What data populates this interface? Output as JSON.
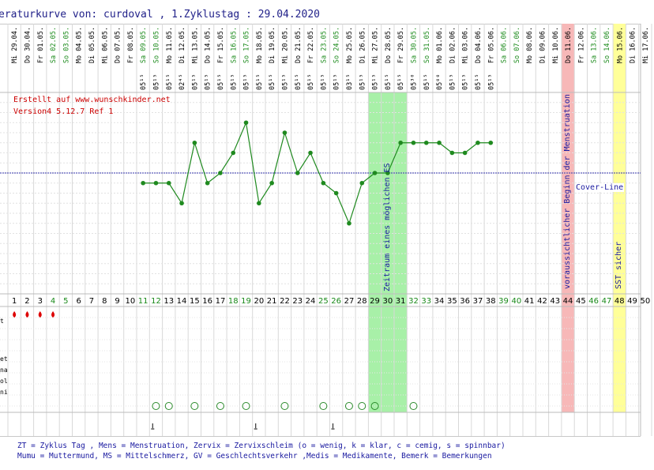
{
  "title": "eraturkurve von: curdoval , 1.Zyklustag : 29.04.2020",
  "notes": [
    "Erstellt auf www.wunschkinder.net",
    "Version4 5.12.7 Ref 1"
  ],
  "row_labels": [
    "t",
    "et",
    "na",
    "ol",
    "ni"
  ],
  "legend_lines": [
    "ZT = Zyklus Tag , Mens = Menstruation, Zervix = Zervixschleim (o = wenig, k = klar, c = cemig, s = spinnbar)",
    "Mumu = Muttermund, MS = Mittelschmerz, GV = Geschlechtsverkehr ,Medis = Medikamente, Bemerk = Bemerkungen"
  ],
  "bands": {
    "fertile_label": "Zeitraum eines möglichen ES",
    "menstruation_label": "voraussichtlicher Beginn der Menstruation",
    "sst_label": "SST sicher",
    "cover_line_label": "Cover-Line"
  },
  "colors": {
    "line": "#1f8a1f",
    "coverline": "#3333aa",
    "fertile": "#a8f0a8",
    "menstruation": "#f7b8b8",
    "sst": "#ffff99",
    "mens_drop": "#dd0000",
    "weekend_text": "#1a8a1a"
  },
  "chart_data": {
    "type": "line",
    "days": [
      {
        "cd": 1,
        "date": "Mi 29.04.",
        "weekend": false,
        "time": ""
      },
      {
        "cd": 2,
        "date": "Do 30.04.",
        "weekend": false,
        "time": ""
      },
      {
        "cd": 3,
        "date": "Fr 01.05.",
        "weekend": false,
        "time": ""
      },
      {
        "cd": 4,
        "date": "Sa 02.05.",
        "weekend": true,
        "time": ""
      },
      {
        "cd": 5,
        "date": "So 03.05.",
        "weekend": true,
        "time": ""
      },
      {
        "cd": 6,
        "date": "Mo 04.05.",
        "weekend": false,
        "time": ""
      },
      {
        "cd": 7,
        "date": "Di 05.05.",
        "weekend": false,
        "time": ""
      },
      {
        "cd": 8,
        "date": "Mi 06.05.",
        "weekend": false,
        "time": ""
      },
      {
        "cd": 9,
        "date": "Do 07.05.",
        "weekend": false,
        "time": ""
      },
      {
        "cd": 10,
        "date": "Fr 08.05.",
        "weekend": false,
        "time": ""
      },
      {
        "cd": 11,
        "date": "Sa 09.05.",
        "weekend": true,
        "time": "05¹⁵"
      },
      {
        "cd": 12,
        "date": "So 10.05.",
        "weekend": true,
        "time": "05¹⁵"
      },
      {
        "cd": 13,
        "date": "Mo 11.05.",
        "weekend": false,
        "time": "05¹⁵"
      },
      {
        "cd": 14,
        "date": "Di 12.05.",
        "weekend": false,
        "time": "02⁴⁵"
      },
      {
        "cd": 15,
        "date": "Mi 13.05.",
        "weekend": false,
        "time": "05¹⁵"
      },
      {
        "cd": 16,
        "date": "Do 14.05.",
        "weekend": false,
        "time": "05¹⁵"
      },
      {
        "cd": 17,
        "date": "Fr 15.05.",
        "weekend": false,
        "time": "05¹⁵"
      },
      {
        "cd": 18,
        "date": "Sa 16.05.",
        "weekend": true,
        "time": "05¹⁵"
      },
      {
        "cd": 19,
        "date": "So 17.05.",
        "weekend": true,
        "time": "05¹⁵"
      },
      {
        "cd": 20,
        "date": "Mo 18.05.",
        "weekend": false,
        "time": "05¹⁵"
      },
      {
        "cd": 21,
        "date": "Di 19.05.",
        "weekend": false,
        "time": "05¹⁵"
      },
      {
        "cd": 22,
        "date": "Mi 20.05.",
        "weekend": false,
        "time": "05¹⁵"
      },
      {
        "cd": 23,
        "date": "Do 21.05.",
        "weekend": false,
        "time": "05¹⁵"
      },
      {
        "cd": 24,
        "date": "Fr 22.05.",
        "weekend": false,
        "time": "05¹⁵"
      },
      {
        "cd": 25,
        "date": "Sa 23.05.",
        "weekend": true,
        "time": "05¹⁵"
      },
      {
        "cd": 26,
        "date": "So 24.05.",
        "weekend": true,
        "time": "05¹⁵"
      },
      {
        "cd": 27,
        "date": "Mo 25.05.",
        "weekend": false,
        "time": "03¹⁵"
      },
      {
        "cd": 28,
        "date": "Di 26.05.",
        "weekend": false,
        "time": "05¹⁵"
      },
      {
        "cd": 29,
        "date": "Mi 27.05.",
        "weekend": false,
        "time": "05¹⁵"
      },
      {
        "cd": 30,
        "date": "Do 28.05.",
        "weekend": false,
        "time": "05¹⁵"
      },
      {
        "cd": 31,
        "date": "Fr 29.05.",
        "weekend": false,
        "time": "05¹⁵"
      },
      {
        "cd": 32,
        "date": "Sa 30.05.",
        "weekend": true,
        "time": "05³⁰"
      },
      {
        "cd": 33,
        "date": "So 31.05.",
        "weekend": true,
        "time": "05¹⁵"
      },
      {
        "cd": 34,
        "date": "Mo 01.06.",
        "weekend": false,
        "time": "05⁰⁰"
      },
      {
        "cd": 35,
        "date": "Di 02.06.",
        "weekend": false,
        "time": "05¹⁵"
      },
      {
        "cd": 36,
        "date": "Mi 03.06.",
        "weekend": false,
        "time": "05¹⁵"
      },
      {
        "cd": 37,
        "date": "Do 04.06.",
        "weekend": false,
        "time": "05¹⁵"
      },
      {
        "cd": 38,
        "date": "Fr 05.06.",
        "weekend": false,
        "time": "05¹⁵"
      },
      {
        "cd": 39,
        "date": "Sa 06.06.",
        "weekend": true,
        "time": ""
      },
      {
        "cd": 40,
        "date": "So 07.06.",
        "weekend": true,
        "time": ""
      },
      {
        "cd": 41,
        "date": "Mo 08.06.",
        "weekend": false,
        "time": ""
      },
      {
        "cd": 42,
        "date": "Di 09.06.",
        "weekend": false,
        "time": ""
      },
      {
        "cd": 43,
        "date": "Mi 10.06.",
        "weekend": false,
        "time": ""
      },
      {
        "cd": 44,
        "date": "Do 11.06.",
        "weekend": false,
        "time": ""
      },
      {
        "cd": 45,
        "date": "Fr 12.06.",
        "weekend": false,
        "time": ""
      },
      {
        "cd": 46,
        "date": "Sa 13.06.",
        "weekend": true,
        "time": ""
      },
      {
        "cd": 47,
        "date": "So 14.06.",
        "weekend": true,
        "time": ""
      },
      {
        "cd": 48,
        "date": "Mo 15.06.",
        "weekend": false,
        "time": ""
      },
      {
        "cd": 49,
        "date": "Di 16.06.",
        "weekend": false,
        "time": ""
      },
      {
        "cd": 50,
        "date": "Mi 17.06.",
        "weekend": false,
        "time": ""
      }
    ],
    "temperatures": [
      {
        "cd": 11,
        "v": 36.4
      },
      {
        "cd": 12,
        "v": 36.4
      },
      {
        "cd": 13,
        "v": 36.4
      },
      {
        "cd": 14,
        "v": 36.3
      },
      {
        "cd": 15,
        "v": 36.6
      },
      {
        "cd": 16,
        "v": 36.4
      },
      {
        "cd": 17,
        "v": 36.45
      },
      {
        "cd": 18,
        "v": 36.55
      },
      {
        "cd": 19,
        "v": 36.7
      },
      {
        "cd": 20,
        "v": 36.3
      },
      {
        "cd": 21,
        "v": 36.4
      },
      {
        "cd": 22,
        "v": 36.65
      },
      {
        "cd": 23,
        "v": 36.45
      },
      {
        "cd": 24,
        "v": 36.55
      },
      {
        "cd": 25,
        "v": 36.4
      },
      {
        "cd": 26,
        "v": 36.35
      },
      {
        "cd": 27,
        "v": 36.2
      },
      {
        "cd": 28,
        "v": 36.4
      },
      {
        "cd": 29,
        "v": 36.45
      },
      {
        "cd": 30,
        "v": 36.45
      },
      {
        "cd": 31,
        "v": 36.6
      },
      {
        "cd": 32,
        "v": 36.6
      },
      {
        "cd": 33,
        "v": 36.6
      },
      {
        "cd": 34,
        "v": 36.6
      },
      {
        "cd": 35,
        "v": 36.55
      },
      {
        "cd": 36,
        "v": 36.55
      },
      {
        "cd": 37,
        "v": 36.6
      },
      {
        "cd": 38,
        "v": 36.6
      }
    ],
    "cover_line": 36.45,
    "ylim": [
      35.85,
      36.85
    ],
    "fertile_days": [
      29,
      30,
      31
    ],
    "menstruation_day": 44,
    "sst_day": 48,
    "mens_days": [
      1,
      2,
      3,
      4
    ],
    "smiley_days": [
      12,
      13,
      15,
      17,
      19,
      22,
      25,
      27,
      28,
      29,
      32
    ],
    "marker_days": [
      12,
      20,
      26
    ]
  }
}
